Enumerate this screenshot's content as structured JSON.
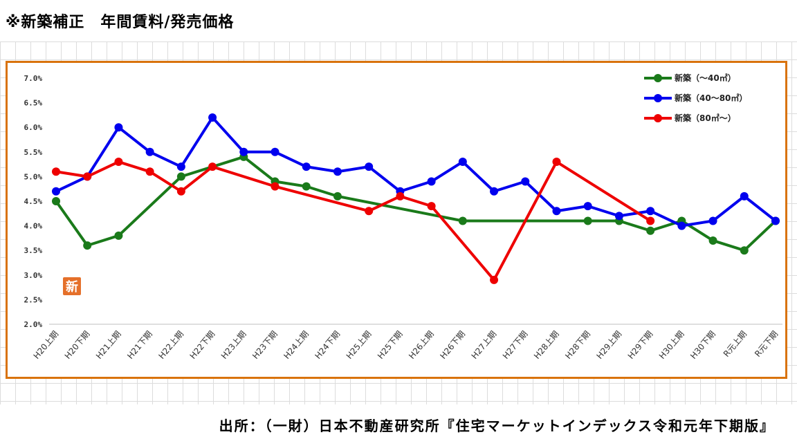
{
  "page_title": "※新築補正　年間賃料/発売価格",
  "source_text": "出所：（一財）日本不動産研究所『住宅マーケットインデックス令和元年下期版』",
  "badge_text": "新",
  "colors": {
    "frame": "#d9730d",
    "badge": "#e5702a"
  },
  "chart_data": {
    "type": "line",
    "categories": [
      "H20上期",
      "H20下期",
      "H21上期",
      "H21下期",
      "H22上期",
      "H22下期",
      "H23上期",
      "H23下期",
      "H24上期",
      "H24下期",
      "H25上期",
      "H25下期",
      "H26上期",
      "H26下期",
      "H27上期",
      "H27下期",
      "H28上期",
      "H28下期",
      "H29上期",
      "H29下期",
      "H30上期",
      "H30下期",
      "R元上期",
      "R元下期"
    ],
    "ylim": [
      2.0,
      7.0
    ],
    "yticks": [
      "2.0%",
      "2.5%",
      "3.0%",
      "3.5%",
      "4.0%",
      "4.5%",
      "5.0%",
      "5.5%",
      "6.0%",
      "6.5%",
      "7.0%"
    ],
    "legend_position": "top-right",
    "series": [
      {
        "name": "新築（～40㎡）",
        "color": "#1a7a1a",
        "values": [
          4.5,
          3.6,
          3.8,
          null,
          5.0,
          null,
          5.4,
          4.9,
          4.8,
          4.6,
          null,
          null,
          null,
          4.1,
          null,
          null,
          null,
          4.1,
          4.1,
          3.9,
          4.1,
          3.7,
          3.5,
          4.1
        ]
      },
      {
        "name": "新築（40～80㎡）",
        "color": "#0000ee",
        "values": [
          4.7,
          5.0,
          6.0,
          5.5,
          5.2,
          6.2,
          5.5,
          5.5,
          5.2,
          5.1,
          5.2,
          4.7,
          4.9,
          5.3,
          4.7,
          4.9,
          4.3,
          4.4,
          4.2,
          4.3,
          4.0,
          4.1,
          4.6,
          4.1
        ]
      },
      {
        "name": "新築（80㎡～）",
        "color": "#ee0000",
        "values": [
          5.1,
          5.0,
          5.3,
          5.1,
          4.7,
          5.2,
          null,
          4.8,
          null,
          null,
          4.3,
          4.6,
          4.4,
          null,
          2.9,
          null,
          5.3,
          null,
          null,
          4.1,
          null,
          null,
          null,
          null
        ]
      }
    ]
  }
}
